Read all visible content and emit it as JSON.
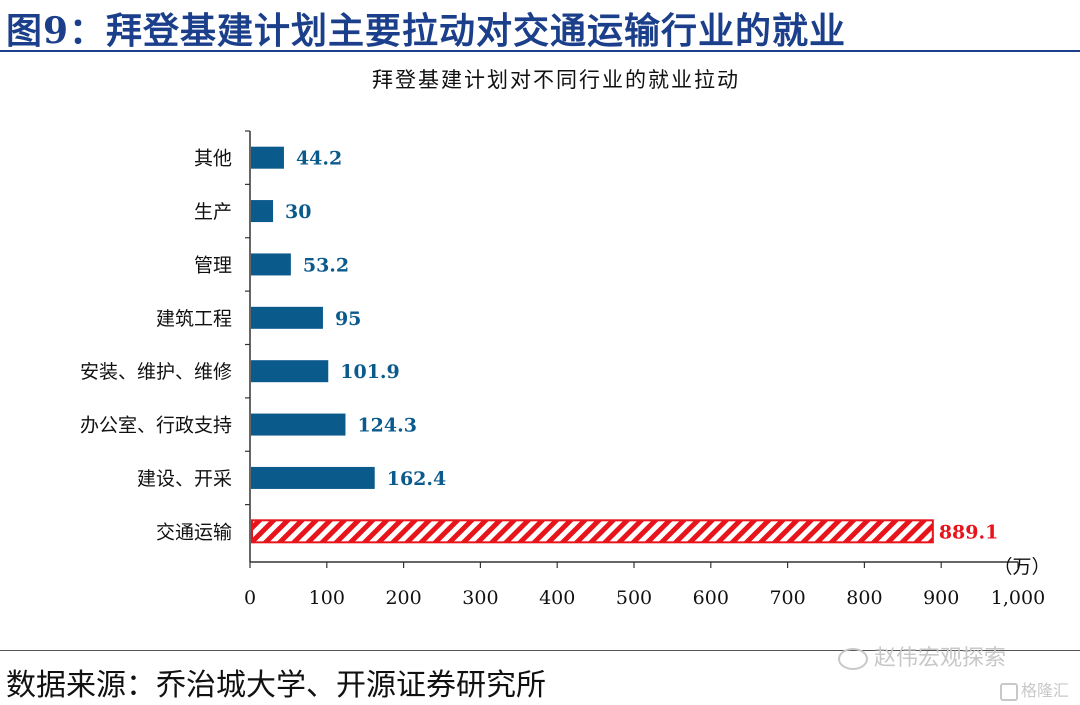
{
  "figure": {
    "title": "图9：拜登基建计划主要拉动对交通运输行业的就业",
    "source": "数据来源：乔治城大学、开源证券研究所",
    "watermark": "赵伟宏观探索",
    "watermark2": "格隆汇"
  },
  "colors": {
    "bar": "#0b5a8c",
    "highlight": "#e8141c",
    "title": "#1b3f8a"
  },
  "chart_data": {
    "type": "bar",
    "orientation": "horizontal",
    "title": "拜登基建计划对不同行业的就业拉动",
    "unit": "（万）",
    "categories": [
      "其他",
      "生产",
      "管理",
      "建筑工程",
      "安装、维护、维修",
      "办公室、行政支持",
      "建设、开采",
      "交通运输"
    ],
    "values": [
      44.2,
      30,
      53.2,
      95,
      101.9,
      124.3,
      162.4,
      889.1
    ],
    "value_labels": [
      "44.2",
      "30",
      "53.2",
      "95",
      "101.9",
      "124.3",
      "162.4",
      "889.1"
    ],
    "highlight_index": 7,
    "xlim": [
      0,
      1000
    ],
    "xticks": [
      0,
      100,
      200,
      300,
      400,
      500,
      600,
      700,
      800,
      900,
      1000
    ],
    "xtick_labels": [
      "0",
      "100",
      "200",
      "300",
      "400",
      "500",
      "600",
      "700",
      "800",
      "900",
      "1,000"
    ],
    "grid": false,
    "legend": "none"
  }
}
